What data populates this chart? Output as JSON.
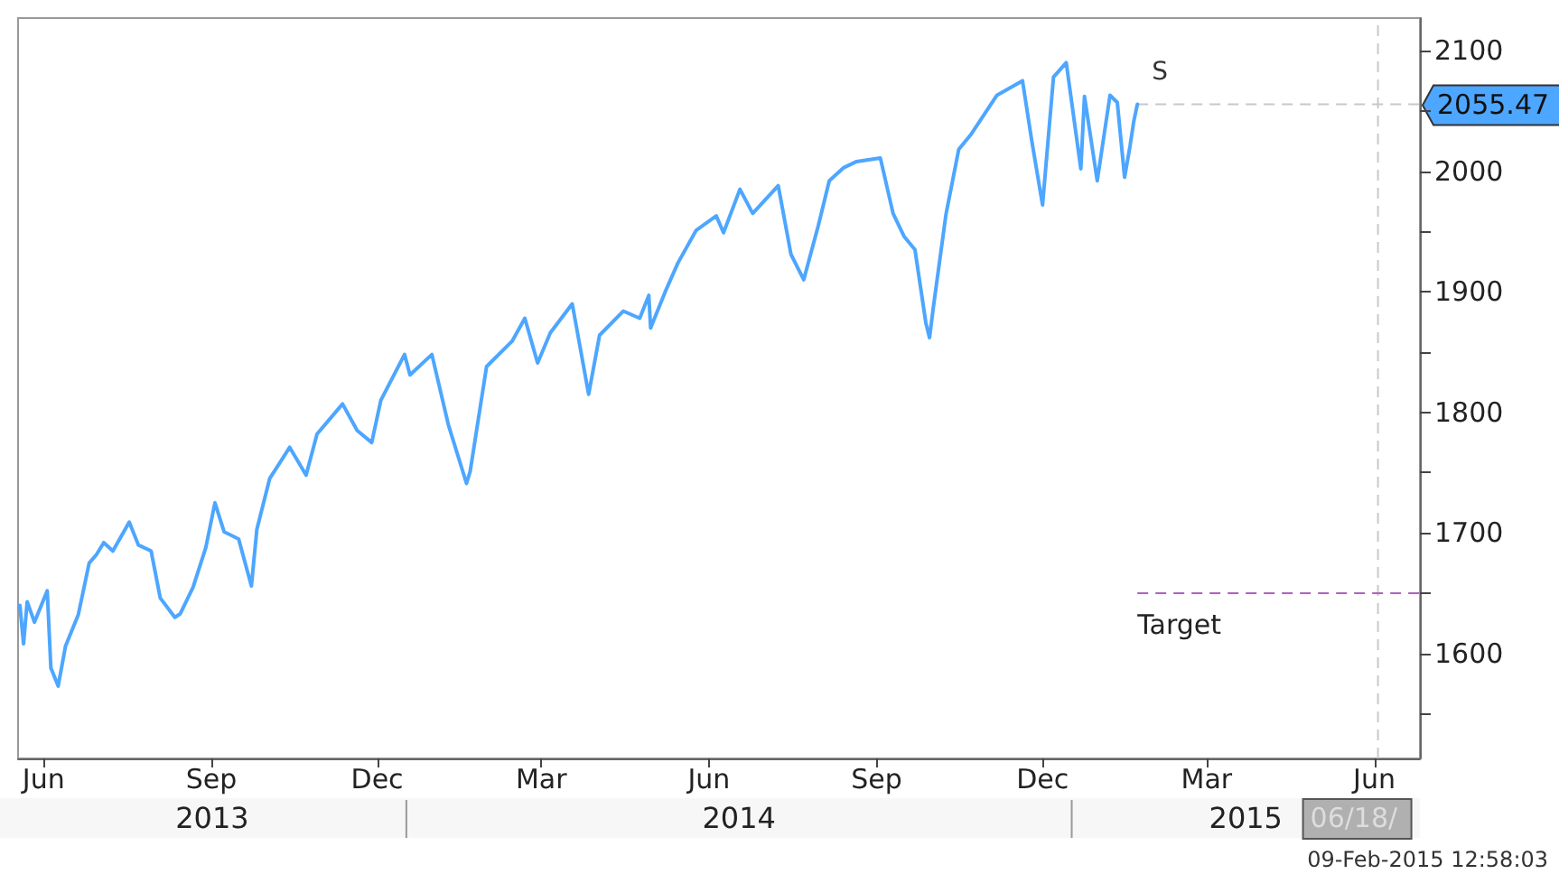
{
  "chart_data": {
    "type": "line",
    "legend": false,
    "grid": false,
    "marker": "none",
    "line_style": "solid",
    "series": [
      {
        "name": "S",
        "color": "#4da6ff",
        "x": [
          "2013-06-03",
          "2013-06-05",
          "2013-06-07",
          "2013-06-11",
          "2013-06-18",
          "2013-06-20",
          "2013-06-24",
          "2013-06-28",
          "2013-07-05",
          "2013-07-11",
          "2013-07-15",
          "2013-07-19",
          "2013-07-24",
          "2013-08-02",
          "2013-08-07",
          "2013-08-14",
          "2013-08-19",
          "2013-08-27",
          "2013-08-30",
          "2013-09-06",
          "2013-09-13",
          "2013-09-18",
          "2013-09-23",
          "2013-10-01",
          "2013-10-08",
          "2013-10-11",
          "2013-10-18",
          "2013-10-29",
          "2013-11-07",
          "2013-11-13",
          "2013-11-27",
          "2013-12-05",
          "2013-12-13",
          "2013-12-18",
          "2013-12-31",
          "2014-01-03",
          "2014-01-15",
          "2014-01-24",
          "2014-02-03",
          "2014-02-05",
          "2014-02-14",
          "2014-02-28",
          "2014-03-07",
          "2014-03-14",
          "2014-03-21",
          "2014-04-02",
          "2014-04-11",
          "2014-04-17",
          "2014-04-30",
          "2014-05-09",
          "2014-05-14",
          "2014-05-15",
          "2014-05-23",
          "2014-05-30",
          "2014-06-09",
          "2014-06-20",
          "2014-06-24",
          "2014-07-03",
          "2014-07-10",
          "2014-07-24",
          "2014-07-31",
          "2014-08-07",
          "2014-08-15",
          "2014-08-21",
          "2014-08-29",
          "2014-09-05",
          "2014-09-18",
          "2014-09-25",
          "2014-10-01",
          "2014-10-07",
          "2014-10-13",
          "2014-10-15",
          "2014-10-17",
          "2014-10-24",
          "2014-10-31",
          "2014-11-07",
          "2014-11-21",
          "2014-12-05",
          "2014-12-10",
          "2014-12-16",
          "2014-12-22",
          "2014-12-29",
          "2015-01-06",
          "2015-01-08",
          "2015-01-15",
          "2015-01-22",
          "2015-01-26",
          "2015-01-30",
          "2015-02-02",
          "2015-02-04",
          "2015-02-06"
        ],
        "values": [
          1640,
          1608,
          1643,
          1626,
          1652,
          1588,
          1573,
          1606,
          1632,
          1675,
          1682,
          1692,
          1685,
          1709,
          1690,
          1685,
          1646,
          1630,
          1633,
          1655,
          1688,
          1725,
          1701,
          1695,
          1656,
          1703,
          1745,
          1771,
          1748,
          1782,
          1807,
          1785,
          1775,
          1810,
          1848,
          1831,
          1848,
          1790,
          1741,
          1751,
          1838,
          1859,
          1878,
          1841,
          1866,
          1890,
          1815,
          1864,
          1884,
          1878,
          1897,
          1870,
          1900,
          1924,
          1951,
          1963,
          1949,
          1985,
          1965,
          1988,
          1931,
          1910,
          1955,
          1992,
          2003,
          2008,
          2011,
          1965,
          1946,
          1935,
          1874,
          1862,
          1886,
          1964,
          2018,
          2031,
          2063,
          2075,
          2026,
          1972,
          2078,
          2090,
          2002,
          2062,
          1992,
          2063,
          2057,
          1995,
          2021,
          2041,
          2055.47
        ]
      }
    ],
    "xlim": [
      "2013-06-02",
      "2015-07-11"
    ],
    "xticks": [
      {
        "value": "2013-06-16",
        "label": "Jun"
      },
      {
        "value": "2013-09-16",
        "label": "Sep"
      },
      {
        "value": "2013-12-16",
        "label": "Dec"
      },
      {
        "value": "2014-03-16",
        "label": "Mar"
      },
      {
        "value": "2014-06-16",
        "label": "Jun"
      },
      {
        "value": "2014-09-16",
        "label": "Sep"
      },
      {
        "value": "2014-12-16",
        "label": "Dec"
      },
      {
        "value": "2015-03-16",
        "label": "Mar"
      },
      {
        "value": "2015-06-16",
        "label": "Jun"
      }
    ],
    "ylim": [
      1513,
      2127
    ],
    "yticks": [
      {
        "value": 1550,
        "label": null
      },
      1600,
      {
        "value": 1650,
        "label": null
      },
      1700,
      {
        "value": 1750,
        "label": null
      },
      1800,
      {
        "value": 1850,
        "label": null
      },
      1900,
      {
        "value": 1950,
        "label": null
      },
      2000,
      {
        "value": 2050,
        "label": null
      },
      2100
    ],
    "ref_lines": [
      {
        "axis": "y",
        "value": 1650,
        "label": "Target",
        "color": "#b060c0",
        "line_style": "dashed"
      },
      {
        "axis": "x",
        "value": "2015-06-18",
        "label": "06/18/",
        "color": "#c8c8c8",
        "line_style": "dashed"
      }
    ],
    "annotations": [
      {
        "text": "2055.47",
        "x": "2015-02-06",
        "y": 2055.47
      },
      "2013",
      "2014",
      "2015",
      "09-Feb-2015 12:58:03"
    ]
  }
}
